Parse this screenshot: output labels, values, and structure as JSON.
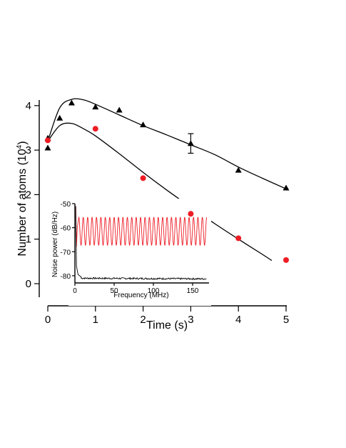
{
  "chart_data": [
    {
      "type": "scatter",
      "xlabel": "Time (s)",
      "ylabel": "Number of atoms (10",
      "ylabel_exponent": "4",
      "ylabel_close": ")",
      "xlim": [
        -0.05,
        5.05
      ],
      "ylim": [
        -0.45,
        4.35
      ],
      "xticks": [
        "0",
        "1",
        "2",
        "3",
        "4",
        "5"
      ],
      "yticks": [
        "0",
        "1",
        "2",
        "3",
        "4"
      ],
      "grid": false,
      "series": [
        {
          "marker": "triangle",
          "color": "#000000",
          "x": [
            0.0,
            0.0,
            0.25,
            0.5,
            1.0,
            1.5,
            2.0,
            3.0,
            4.0,
            5.0
          ],
          "y": [
            3.05,
            3.27,
            3.72,
            4.06,
            3.97,
            3.9,
            3.57,
            3.15,
            2.55,
            2.15
          ],
          "error_bars": [
            {
              "x": 3.0,
              "y": 3.15,
              "err": 0.22
            }
          ]
        },
        {
          "marker": "circle",
          "color": "#ee1c25",
          "x": [
            0.0,
            1.0,
            2.0,
            3.0,
            4.0,
            5.0
          ],
          "y": [
            3.22,
            3.48,
            2.37,
            1.57,
            1.02,
            0.53
          ]
        }
      ],
      "fits": [
        {
          "color": "#000000",
          "x": [
            0.0,
            0.25,
            0.5,
            0.75,
            1.0,
            1.5,
            2.0,
            2.5,
            3.0,
            3.5,
            4.0,
            4.5,
            5.0
          ],
          "y": [
            3.2,
            3.95,
            4.14,
            4.13,
            4.03,
            3.79,
            3.55,
            3.34,
            3.12,
            2.9,
            2.62,
            2.37,
            2.13
          ]
        },
        {
          "color": "#000000",
          "x": [
            0.0,
            0.25,
            0.5,
            0.75,
            1.0,
            1.5,
            2.0,
            2.5,
            3.0,
            3.5,
            4.0,
            4.5,
            4.7
          ],
          "y": [
            3.2,
            3.55,
            3.6,
            3.48,
            3.32,
            2.92,
            2.5,
            2.1,
            1.72,
            1.35,
            1.0,
            0.66,
            0.52
          ]
        }
      ]
    },
    {
      "type": "line",
      "xlabel": "Frequency (MHz)",
      "ylabel": "Noise power (dB/Hz)",
      "xlim": [
        0,
        170
      ],
      "ylim": [
        -83,
        -50
      ],
      "xticks": [
        "0",
        "50",
        "100",
        "150"
      ],
      "yticks": [
        "-50",
        "-60",
        "-70",
        "-80"
      ],
      "series": [
        {
          "color": "#ee1c25",
          "spike_top": -51,
          "baseline_mean": -61.5,
          "amplitude": 5.8,
          "cycles": 29,
          "start": 5
        },
        {
          "color": "#000000",
          "spike_top": -51,
          "baseline_mean": -81,
          "noise": 0.35
        }
      ]
    }
  ]
}
